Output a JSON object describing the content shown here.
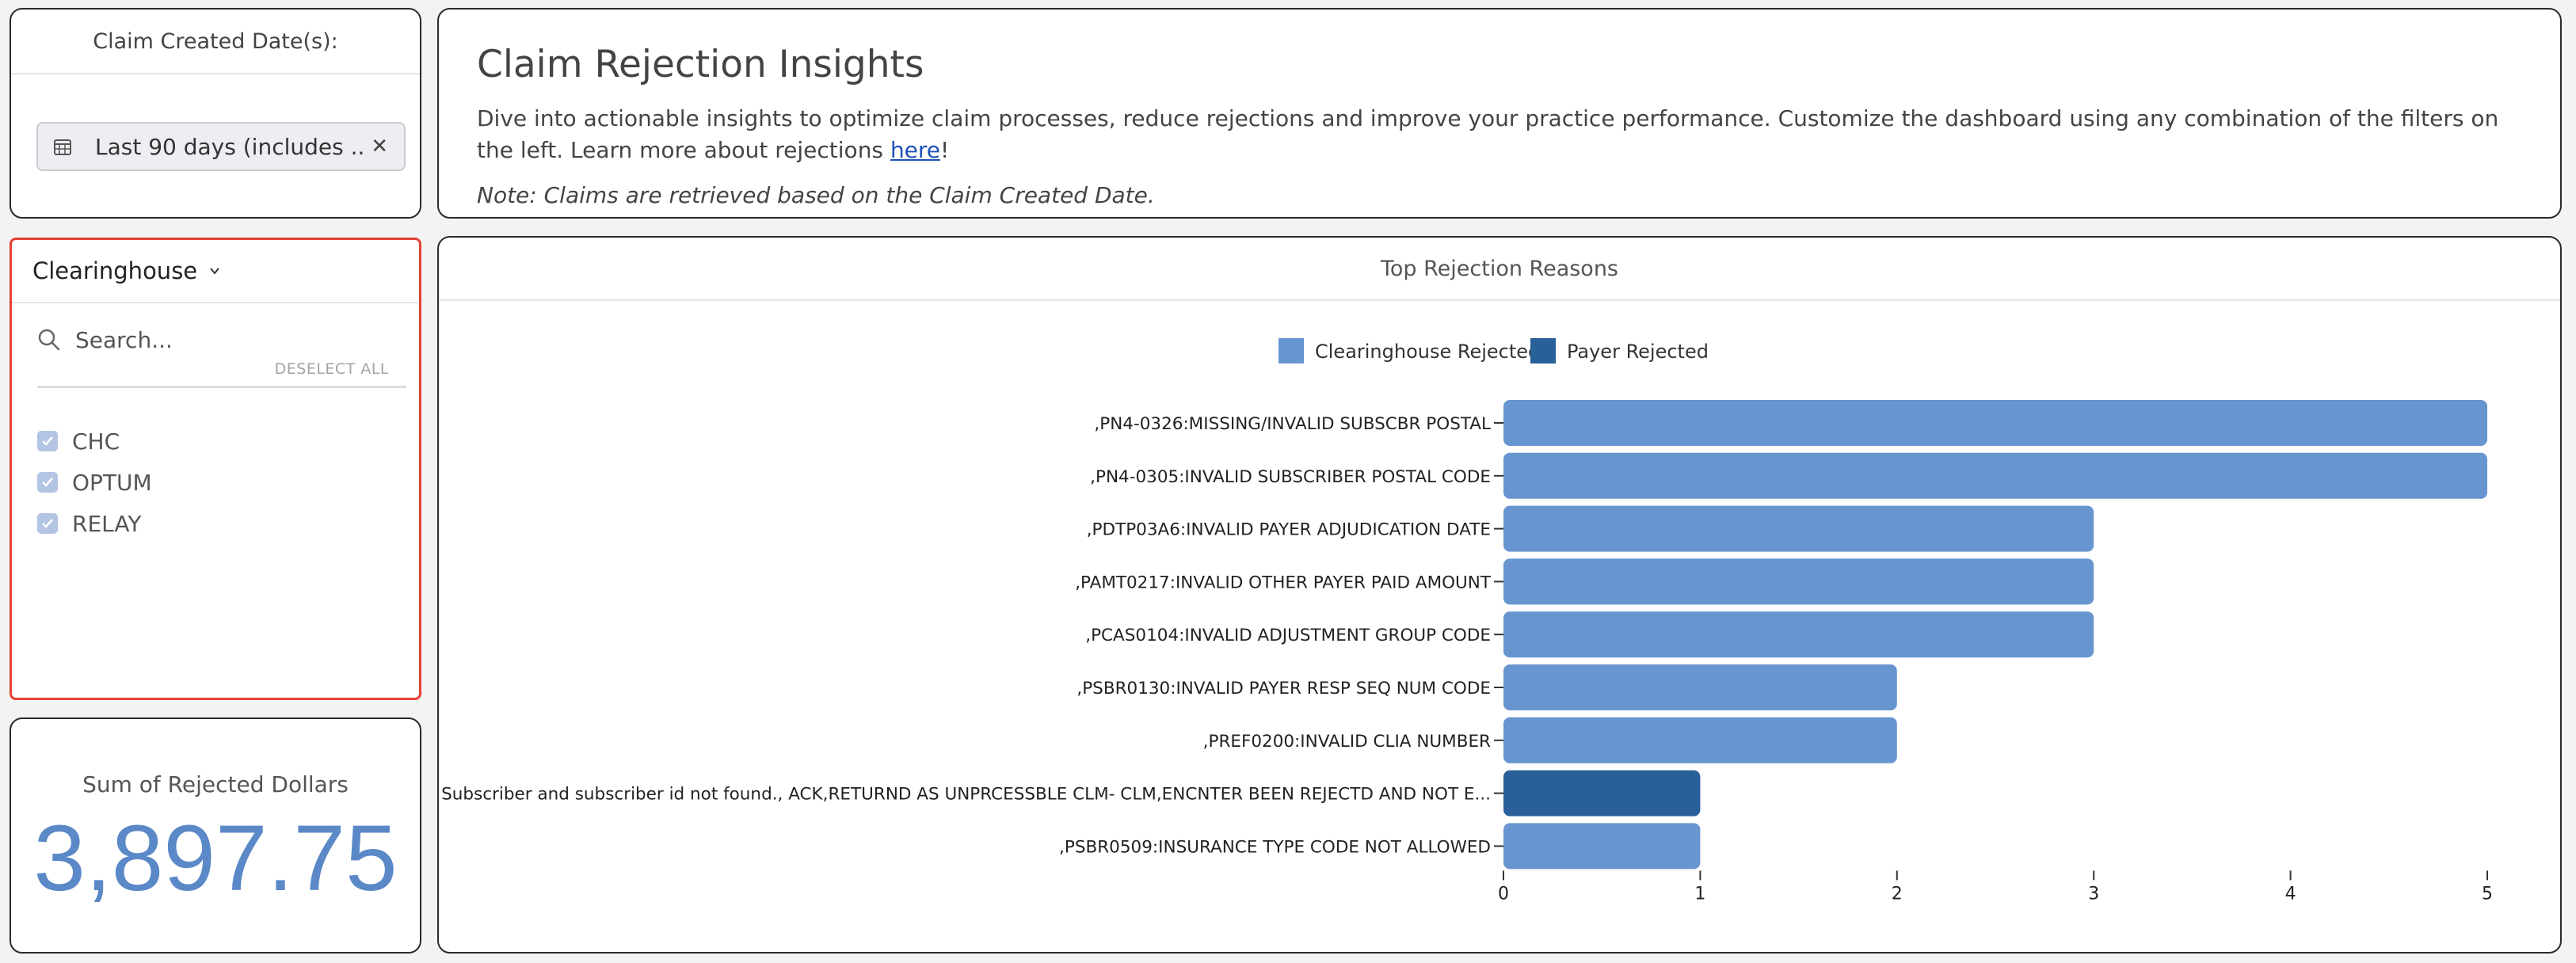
{
  "date_filter": {
    "title": "Claim Created Date(s):",
    "value": "Last 90 days (includes ...",
    "calendar_icon": "calendar-icon",
    "clear_icon": "close-icon"
  },
  "clearinghouse": {
    "title": "Clearinghouse",
    "search_placeholder": "Search...",
    "deselect_all": "DESELECT ALL",
    "options": [
      {
        "label": "CHC",
        "checked": true
      },
      {
        "label": "OPTUM",
        "checked": true
      },
      {
        "label": "RELAY",
        "checked": true
      }
    ]
  },
  "sum": {
    "label": "Sum of Rejected Dollars",
    "value": "3,897.75"
  },
  "insights": {
    "title": "Claim Rejection Insights",
    "desc_before": "Dive into actionable insights to optimize claim processes, reduce rejections and improve your practice performance. Customize the dashboard using any combination of the filters on the left. Learn more about rejections ",
    "link": "here",
    "desc_after": "!",
    "note": "Note: Claims are retrieved based on the Claim Created Date."
  },
  "colors": {
    "clearinghouse": "#6795d0",
    "payer": "#2a6099",
    "accent": "#5b89c8",
    "highlight_border": "#e34234"
  },
  "chart_data": {
    "type": "bar",
    "orientation": "horizontal",
    "title": "Top Rejection Reasons",
    "legend": [
      "Clearinghouse Rejected",
      "Payer Rejected"
    ],
    "legend_position": "top-center",
    "categories": [
      ",PN4-0326:MISSING/INVALID SUBSCBR POSTAL",
      ",PN4-0305:INVALID SUBSCRIBER POSTAL CODE",
      ",PDTP03A6:INVALID PAYER ADJUDICATION DATE",
      ",PAMT0217:INVALID OTHER PAYER PAID AMOUNT",
      ",PCAS0104:INVALID ADJUSTMENT GROUP CODE",
      ",PSBR0130:INVALID PAYER RESP SEQ NUM CODE",
      ",PREF0200:INVALID CLIA NUMBER",
      "Subscriber and subscriber id not found., ACK,RETURND AS UNPRCESSBLE CLM- CLM,ENCNTER BEEN REJECTD AND NOT E...",
      ",PSBR0509:INSURANCE TYPE CODE NOT ALLOWED"
    ],
    "series": [
      {
        "name": "Clearinghouse Rejected",
        "values": [
          5,
          5,
          3,
          3,
          3,
          2,
          2,
          0,
          1
        ]
      },
      {
        "name": "Payer Rejected",
        "values": [
          0,
          0,
          0,
          0,
          0,
          0,
          0,
          1,
          0
        ]
      }
    ],
    "x_ticks": [
      "0",
      "1",
      "2",
      "3",
      "4",
      "5"
    ],
    "xlim": [
      0,
      5
    ],
    "grid": false
  }
}
